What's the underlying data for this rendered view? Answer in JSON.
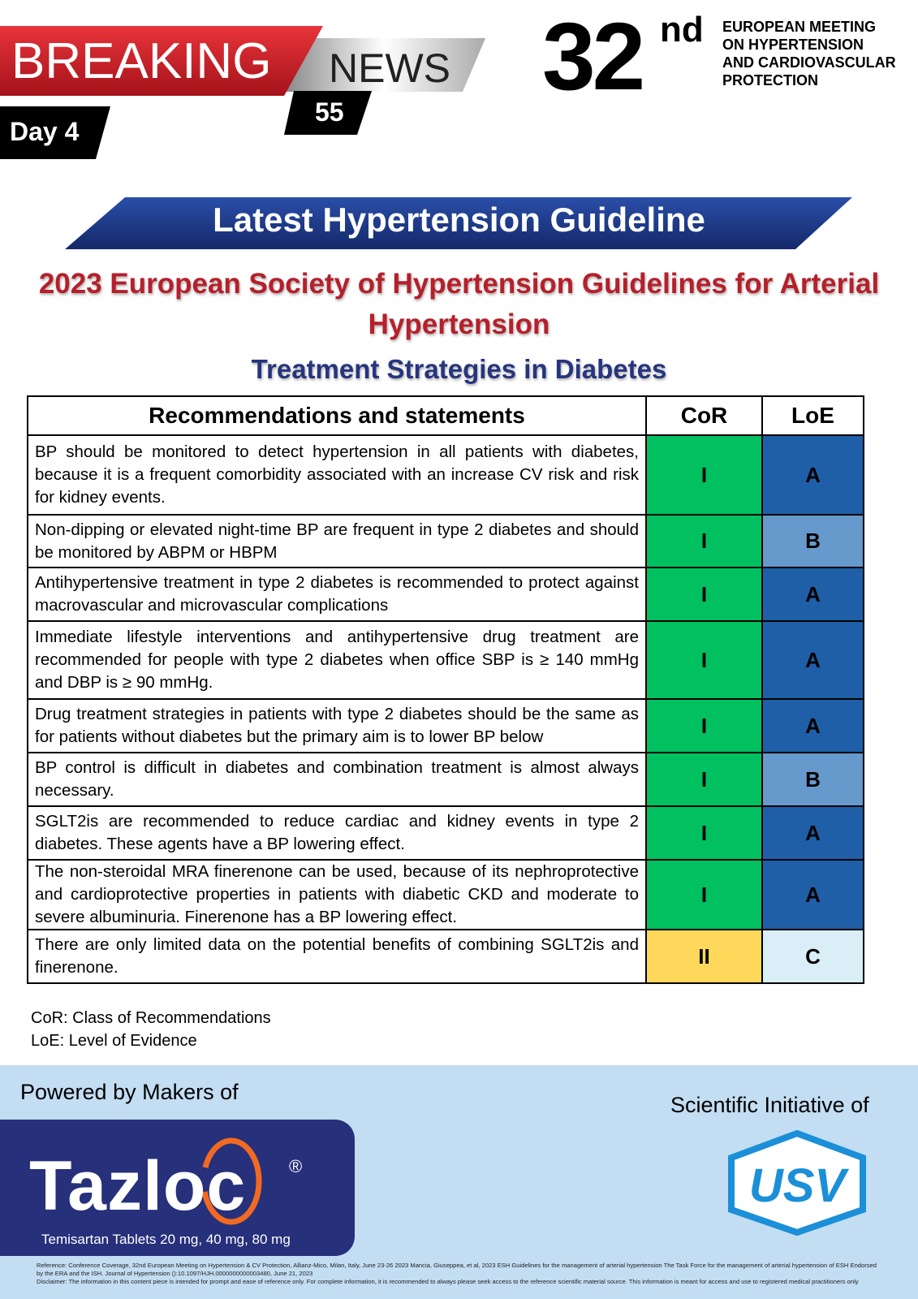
{
  "header": {
    "breaking": "BREAKING",
    "news": "NEWS",
    "issue": "55",
    "day": "Day 4",
    "edition": "32",
    "edition_suffix": "nd",
    "meeting": [
      "EUROPEAN MEETING",
      "ON HYPERTENSION",
      "AND CARDIOVASCULAR",
      "PROTECTION"
    ]
  },
  "banner": "Latest Hypertension Guideline",
  "title": "2023 European Society of Hypertension Guidelines for Arterial Hypertension",
  "subtitle": "Treatment Strategies in Diabetes",
  "table": {
    "headers": [
      "Recommendations and statements",
      "CoR",
      "LoE"
    ],
    "rows": [
      {
        "text": "BP should be monitored to detect hypertension in all patients with diabetes, because it is a frequent comorbidity associated with an increase CV risk and risk for kidney events.",
        "cor": "I",
        "loe": "A",
        "cor_color": "#00c060",
        "loe_color": "#1f5fa8"
      },
      {
        "text": "Non-dipping or elevated night-time BP are frequent in type 2 diabetes and should be monitored by ABPM or HBPM",
        "cor": "I",
        "loe": "B",
        "cor_color": "#00c060",
        "loe_color": "#6699cc"
      },
      {
        "text": "Antihypertensive treatment in type 2 diabetes is recommended to protect against macrovascular and microvascular complications",
        "cor": "I",
        "loe": "A",
        "cor_color": "#00c060",
        "loe_color": "#1f5fa8"
      },
      {
        "text": "Immediate lifestyle interventions and antihypertensive drug treatment are recommended for people with type 2 diabetes when office SBP is ≥ 140 mmHg and DBP is ≥ 90 mmHg.",
        "cor": "I",
        "loe": "A",
        "cor_color": "#00c060",
        "loe_color": "#1f5fa8"
      },
      {
        "text": "Drug treatment strategies in patients with type 2 diabetes should be the same as for patients without diabetes but the primary aim is to lower BP below",
        "cor": "I",
        "loe": "A",
        "cor_color": "#00c060",
        "loe_color": "#1f5fa8"
      },
      {
        "text": "BP control is difficult in diabetes and combination treatment is almost always necessary.",
        "cor": "I",
        "loe": "B",
        "cor_color": "#00c060",
        "loe_color": "#6699cc"
      },
      {
        "text": "SGLT2is are recommended to reduce cardiac and kidney events in type 2 diabetes. These agents have a BP lowering effect.",
        "cor": "I",
        "loe": "A",
        "cor_color": "#00c060",
        "loe_color": "#1f5fa8"
      },
      {
        "text": "The non-steroidal MRA finerenone can be used, because of its nephroprotective and cardioprotective properties in patients with diabetic CKD and moderate to severe albuminuria. Finerenone has a BP lowering effect.",
        "cor": "I",
        "loe": "A",
        "cor_color": "#00c060",
        "loe_color": "#1f5fa8"
      },
      {
        "text": "There are only limited data on the potential benefits of combining SGLT2is and finerenone.",
        "cor": "II",
        "loe": "C",
        "cor_color": "#fdd85a",
        "loe_color": "#d9eef7"
      }
    ]
  },
  "legend": [
    "CoR: Class of Recommendations",
    "LoE: Level of Evidence"
  ],
  "footer": {
    "powered": "Powered by Makers of",
    "brand": "Tazloc",
    "registered": "®",
    "product": "Temisartan Tablets 20 mg, 40 mg, 80 mg",
    "initiative": "Scientific Initiative of",
    "logo": "USV",
    "reference": "Reference: Conference Coverage, 32nd European Meeting on Hypertension & CV Protection, Allianz-Mico, Milan, Italy, June 23-26 2023 Mancia, Giuseppea, et al, 2023 ESH Guidelines for the management of arterial hypertension The Task Force for the management of arterial hypertension of ESH Endorsed by the ERA and the ISH. Journal of Hypertension ():10.1097/HJH.0000000000003480, June 21, 2023",
    "disclaimer": "Disclaimer: The information in this content piece is intended for prompt and ease of reference only. For complete information, it is recommended to always please seek access to the reference scientific material source. This information is meant for access and use to registered medical practitioners only"
  }
}
